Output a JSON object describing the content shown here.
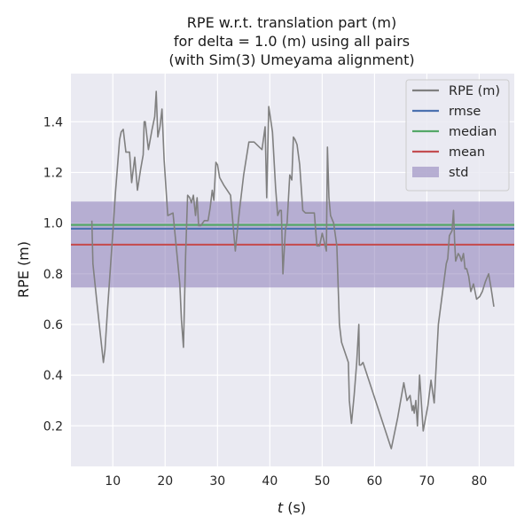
{
  "chart_data": {
    "type": "line",
    "title": [
      "RPE w.r.t. translation part (m)",
      "for delta = 1.0 (m) using all pairs",
      "(with Sim(3) Umeyama alignment)"
    ],
    "xlabel_var": "t",
    "xlabel_unit": " (s)",
    "ylabel": "RPE (m)",
    "xlim": [
      2.0,
      86.7
    ],
    "ylim": [
      0.04,
      1.59
    ],
    "x_ticks": [
      10,
      20,
      30,
      40,
      50,
      60,
      70,
      80
    ],
    "y_ticks": [
      0.2,
      0.4,
      0.6,
      0.8,
      1.0,
      1.2,
      1.4
    ],
    "grid": true,
    "legend_position": "top-right",
    "colors": {
      "background": "#eaeaf2",
      "grid": "#ffffff",
      "rpe": "#808080",
      "rmse": "#4c72b0",
      "median": "#55a868",
      "mean": "#c44e52",
      "std": "#8172b2"
    },
    "stats": {
      "rmse": 0.978,
      "median": 0.993,
      "mean": 0.915,
      "std_low": 0.746,
      "std_high": 1.085
    },
    "legend": [
      {
        "key": "rpe",
        "label": "RPE (m)",
        "kind": "line"
      },
      {
        "key": "rmse",
        "label": "rmse",
        "kind": "line"
      },
      {
        "key": "median",
        "label": "median",
        "kind": "line"
      },
      {
        "key": "mean",
        "label": "mean",
        "kind": "line"
      },
      {
        "key": "std",
        "label": "std",
        "kind": "patch"
      }
    ],
    "series": [
      {
        "name": "RPE (m)",
        "x": [
          6.0,
          6.2,
          7.0,
          8.2,
          8.5,
          9.0,
          10.0,
          10.5,
          11.3,
          11.6,
          12.0,
          12.5,
          13.2,
          13.6,
          14.2,
          14.7,
          15.3,
          15.8,
          16.0,
          16.2,
          16.8,
          17.5,
          18.0,
          18.3,
          18.6,
          19.0,
          19.4,
          19.8,
          20.5,
          21.5,
          22.8,
          23.1,
          23.5,
          23.9,
          24.3,
          24.7,
          25.0,
          25.4,
          25.8,
          26.1,
          26.4,
          26.8,
          27.5,
          28.2,
          28.6,
          29.0,
          29.3,
          29.7,
          30.0,
          30.4,
          31.2,
          32.5,
          33.4,
          33.7,
          34.2,
          35.0,
          36.0,
          37.0,
          38.0,
          38.5,
          39.1,
          39.4,
          39.8,
          40.5,
          41.1,
          41.5,
          41.9,
          42.2,
          42.5,
          43.0,
          43.3,
          43.8,
          44.2,
          44.5,
          44.8,
          45.2,
          45.7,
          46.3,
          46.8,
          47.3,
          48.5,
          49.0,
          49.5,
          50.0,
          50.8,
          51.0,
          51.3,
          51.6,
          52.2,
          52.8,
          53.3,
          53.7,
          55.0,
          55.2,
          55.6,
          56.1,
          56.6,
          57.0,
          57.1,
          57.4,
          57.8,
          63.2,
          64.4,
          65.6,
          66.2,
          66.8,
          67.2,
          67.4,
          67.6,
          67.9,
          68.2,
          68.6,
          69.3,
          70.2,
          70.8,
          71.4,
          72.2,
          73.7,
          74.0,
          74.3,
          74.8,
          75.1,
          75.3,
          75.5,
          76.0,
          76.3,
          76.6,
          77.0,
          77.3,
          77.6,
          78.0,
          78.4,
          78.9,
          79.5,
          80.1,
          80.6,
          81.2,
          81.8,
          82.3,
          82.8
        ],
        "y": [
          1.01,
          0.84,
          0.68,
          0.45,
          0.5,
          0.66,
          0.96,
          1.12,
          1.33,
          1.36,
          1.37,
          1.28,
          1.28,
          1.16,
          1.26,
          1.13,
          1.21,
          1.27,
          1.4,
          1.4,
          1.29,
          1.37,
          1.42,
          1.52,
          1.34,
          1.38,
          1.45,
          1.25,
          1.03,
          1.04,
          0.76,
          0.62,
          0.51,
          0.87,
          1.11,
          1.1,
          1.08,
          1.11,
          1.03,
          1.1,
          0.99,
          0.99,
          1.01,
          1.01,
          1.06,
          1.13,
          1.09,
          1.24,
          1.23,
          1.18,
          1.15,
          1.11,
          0.89,
          0.95,
          1.05,
          1.19,
          1.32,
          1.32,
          1.3,
          1.29,
          1.38,
          1.1,
          1.46,
          1.36,
          1.14,
          1.03,
          1.05,
          1.05,
          0.8,
          0.98,
          1.0,
          1.19,
          1.17,
          1.34,
          1.33,
          1.31,
          1.23,
          1.05,
          1.04,
          1.04,
          1.04,
          0.91,
          0.91,
          0.96,
          0.89,
          1.3,
          1.1,
          1.03,
          1.0,
          0.91,
          0.6,
          0.53,
          0.45,
          0.3,
          0.21,
          0.32,
          0.45,
          0.6,
          0.44,
          0.44,
          0.45,
          0.11,
          0.23,
          0.37,
          0.3,
          0.32,
          0.26,
          0.28,
          0.25,
          0.3,
          0.2,
          0.4,
          0.18,
          0.28,
          0.38,
          0.29,
          0.6,
          0.84,
          0.86,
          0.95,
          0.97,
          1.05,
          0.93,
          0.85,
          0.88,
          0.87,
          0.85,
          0.88,
          0.82,
          0.82,
          0.79,
          0.73,
          0.76,
          0.7,
          0.71,
          0.73,
          0.77,
          0.8,
          0.74,
          0.67
        ]
      }
    ]
  }
}
